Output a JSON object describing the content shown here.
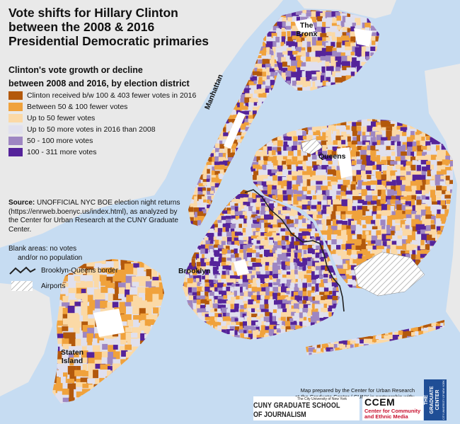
{
  "title": {
    "line1": "Vote shifts for Hillary Clinton",
    "line2": "between the 2008 & 2016",
    "line3": "Presidential Democratic primaries"
  },
  "subtitle": {
    "line1": "Clinton's vote growth or decline",
    "line2": "between 2008 and 2016, by election district"
  },
  "legend": [
    {
      "label": "Clinton received b/w 100 & 403 fewer votes in 2016",
      "color": "#b3590c"
    },
    {
      "label": "Between 50 & 100 fewer votes",
      "color": "#f0a23c"
    },
    {
      "label": "Up to 50 fewer votes",
      "color": "#fbd9a6"
    },
    {
      "label": "Up to 50 more votes in 2016 than 2008",
      "color": "#e0e0ee"
    },
    {
      "label": "50 - 100 more votes",
      "color": "#9e86c2"
    },
    {
      "label": "100 - 311 more votes",
      "color": "#55239a"
    }
  ],
  "source": {
    "label": "Source:",
    "text": " UNOFFICIAL NYC BOE election night returns (https://enrweb.boenyc.us/index.html), as analyzed by the Center for Urban Research at the CUNY Graduate Center."
  },
  "blank_areas": {
    "line1": "Blank areas: no votes",
    "line2": "and/or no population"
  },
  "border_key": {
    "label": "Brooklyn-Queens border"
  },
  "airport_key": {
    "label": "Airports"
  },
  "boroughs": {
    "bronx_line1": "The",
    "bronx_line2": "Bronx",
    "manhattan": "Manhattan",
    "queens": "Queens",
    "brooklyn": "Brooklyn",
    "staten_line1": "Staten",
    "staten_line2": "Island"
  },
  "credit": {
    "line1": "Map prepared by the Center for Urban Research",
    "line2": "at the Graduate Center / CUNY in partnership with:"
  },
  "logos": {
    "cuny_small": "The City University of New York",
    "cuny_line1": "CUNY GRADUATE SCHOOL",
    "cuny_line2": "OF JOURNALISM",
    "ccem_main": "CCEM",
    "ccem_sub1": "Center for Community",
    "ccem_sub2": "and Ethnic Media",
    "gc_line1": "THE",
    "gc_line2": "GRADUATE",
    "gc_line3": "CENTER",
    "gc_line4": "CITY UNIVERSITY OF NEW YORK"
  },
  "colors": {
    "water": "#c6dcf2",
    "land_outside": "#e9e9e9",
    "border_line": "#222222"
  }
}
